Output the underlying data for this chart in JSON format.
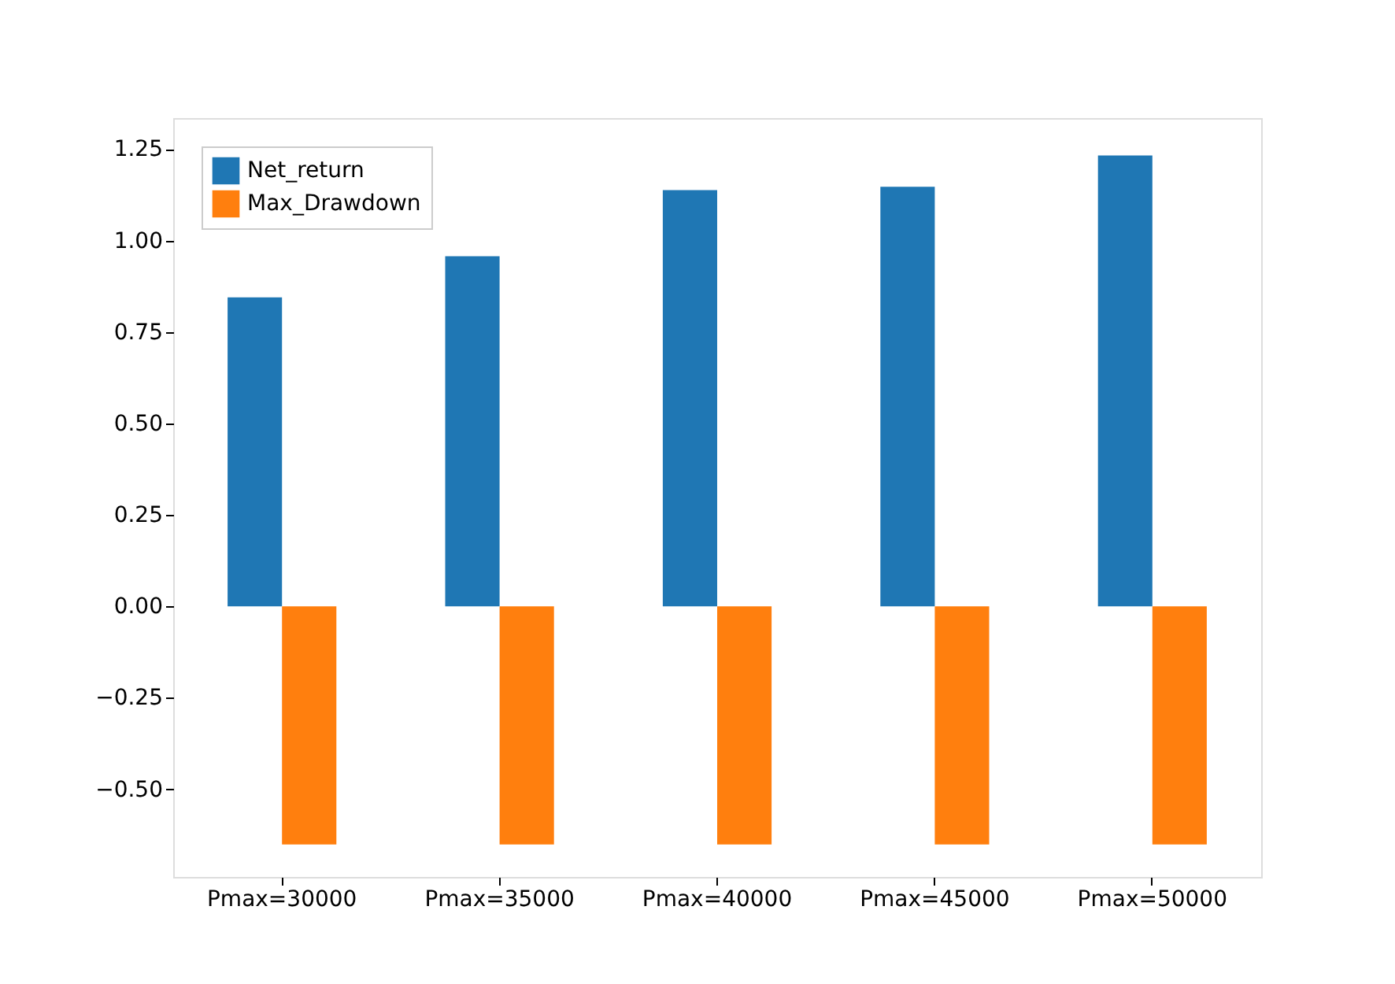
{
  "chart_data": {
    "type": "bar",
    "categories": [
      "Pmax=30000",
      "Pmax=35000",
      "Pmax=40000",
      "Pmax=45000",
      "Pmax=50000"
    ],
    "series": [
      {
        "name": "Net_return",
        "color": "#1f77b4",
        "values": [
          0.845,
          0.957,
          1.138,
          1.147,
          1.233
        ]
      },
      {
        "name": "Max_Drawdown",
        "color": "#ff7f0e",
        "values": [
          -0.651,
          -0.651,
          -0.651,
          -0.651,
          -0.651
        ]
      }
    ],
    "ylim": [
      -0.74,
      1.335
    ],
    "yticks": [
      {
        "value": -0.5,
        "label": "−0.50"
      },
      {
        "value": -0.25,
        "label": "−0.25"
      },
      {
        "value": 0,
        "label": "0.00"
      },
      {
        "value": 0.25,
        "label": "0.25"
      },
      {
        "value": 0.5,
        "label": "0.50"
      },
      {
        "value": 0.75,
        "label": "0.75"
      },
      {
        "value": 1.0,
        "label": "1.00"
      },
      {
        "value": 1.25,
        "label": "1.25"
      }
    ],
    "grid": false,
    "legend": "top left"
  }
}
